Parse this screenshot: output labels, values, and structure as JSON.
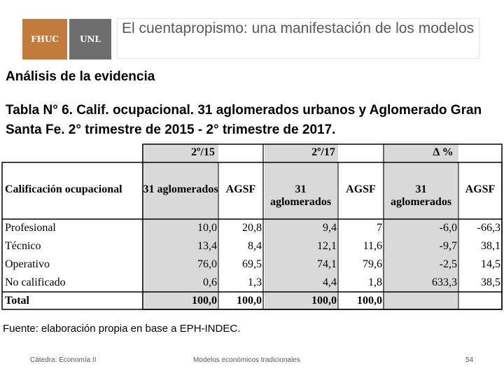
{
  "header": {
    "logo_left": "FHUC",
    "logo_right": "UNL",
    "title": "El cuentapropismo: una manifestación de los modelos"
  },
  "section_title": "Análisis de la evidencia",
  "table_caption": "Tabla N° 6. Calif. ocupacional. 31 aglomerados urbanos y Aglomerado Gran Santa Fe. 2° trimestre de 2015 - 2° trimestre de 2017.",
  "table": {
    "period_headers": [
      "2º/15",
      "2º/17",
      "Δ %"
    ],
    "row_header": "Calificación ocupacional",
    "column_headers": [
      "31 aglomerados",
      "AGSF",
      "31 aglomerados",
      "AGSF",
      "31 aglomerados",
      "AGSF"
    ],
    "rows": [
      {
        "label": "Profesional",
        "values": [
          "10,0",
          "20,8",
          "9,4",
          "7",
          "-6,0",
          "-66,3"
        ]
      },
      {
        "label": "Técnico",
        "values": [
          "13,4",
          "8,4",
          "12,1",
          "11,6",
          "-9,7",
          "38,1"
        ]
      },
      {
        "label": "Operativo",
        "values": [
          "76,0",
          "69,5",
          "74,1",
          "79,6",
          "-2,5",
          "14,5"
        ]
      },
      {
        "label": "No calificado",
        "values": [
          "0,6",
          "1,3",
          "4,4",
          "1,8",
          "633,3",
          "38,5"
        ]
      }
    ],
    "total": {
      "label": "Total",
      "values": [
        "100,0",
        "100,0",
        "100,0",
        "100,0",
        "",
        ""
      ]
    }
  },
  "footnote": {
    "label": "Fuente",
    "text": ": elaboración propia en base a EPH-INDEC."
  },
  "footer": {
    "left": "Cátedra: Economía II",
    "center": "Modelos económicos tradicionales",
    "page": "54"
  }
}
